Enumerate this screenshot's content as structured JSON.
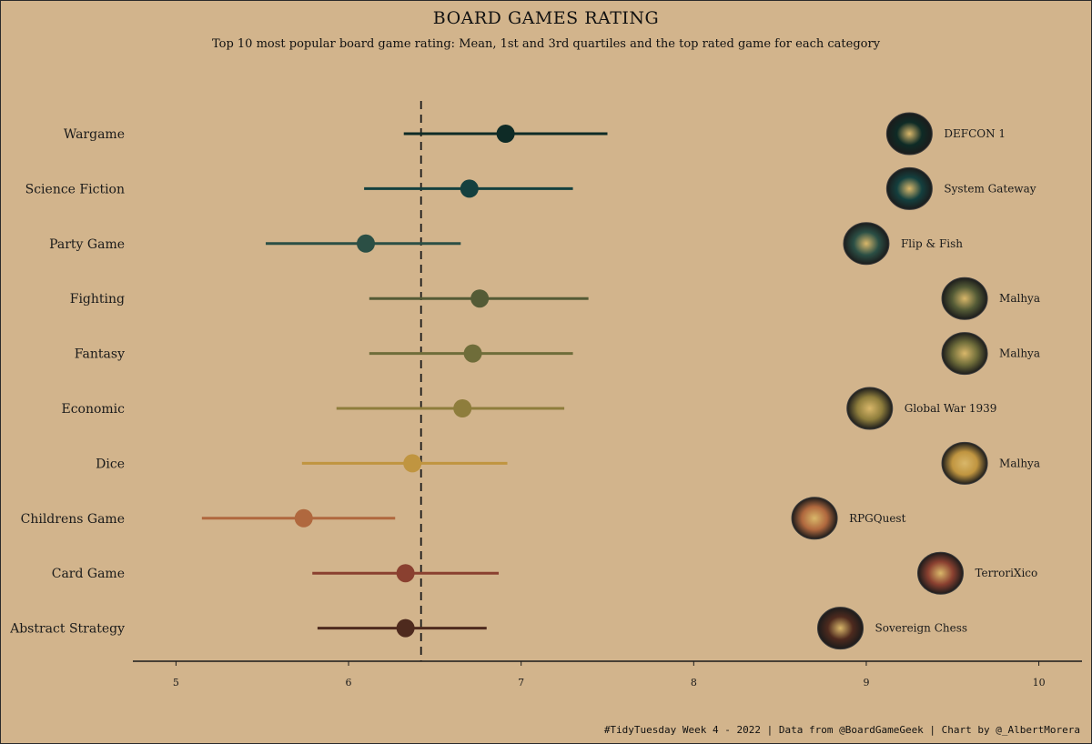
{
  "title": "BOARD GAMES RATING",
  "subtitle": "Top 10 most popular board game rating: Mean, 1st and 3rd quartiles and the top rated game for each category",
  "caption": "#TidyTuesday Week 4 - 2022 | Data from @BoardGameGeek | Chart by @_AlbertMorera",
  "chart_data": {
    "type": "dot-range",
    "xlim": [
      4.75,
      10.25
    ],
    "x_ticks": [
      5,
      6,
      7,
      8,
      9,
      10
    ],
    "reference_line": 6.42,
    "categories": [
      {
        "name": "Wargame",
        "q1": 6.32,
        "mean": 6.91,
        "q3": 7.5,
        "color": "#0e2b26",
        "top_game": "DEFCON 1",
        "top_game_rating": 9.25
      },
      {
        "name": "Science Fiction",
        "q1": 6.09,
        "mean": 6.7,
        "q3": 7.3,
        "color": "#14403f",
        "top_game": "System Gateway",
        "top_game_rating": 9.25
      },
      {
        "name": "Party Game",
        "q1": 5.52,
        "mean": 6.1,
        "q3": 6.65,
        "color": "#2b4f45",
        "top_game": "Flip & Fish",
        "top_game_rating": 9.0
      },
      {
        "name": "Fighting",
        "q1": 6.12,
        "mean": 6.76,
        "q3": 7.39,
        "color": "#545b36",
        "top_game": "Malhya",
        "top_game_rating": 9.57
      },
      {
        "name": "Fantasy",
        "q1": 6.12,
        "mean": 6.72,
        "q3": 7.3,
        "color": "#6f6d3a",
        "top_game": "Malhya",
        "top_game_rating": 9.57
      },
      {
        "name": "Economic",
        "q1": 5.93,
        "mean": 6.66,
        "q3": 7.25,
        "color": "#8e7d3c",
        "top_game": "Global War 1939",
        "top_game_rating": 9.02
      },
      {
        "name": "Dice",
        "q1": 5.73,
        "mean": 6.37,
        "q3": 6.92,
        "color": "#c09540",
        "top_game": "Malhya",
        "top_game_rating": 9.57
      },
      {
        "name": "Childrens Game",
        "q1": 5.15,
        "mean": 5.74,
        "q3": 6.27,
        "color": "#b0683e",
        "top_game": "RPGQuest",
        "top_game_rating": 8.7
      },
      {
        "name": "Card Game",
        "q1": 5.79,
        "mean": 6.33,
        "q3": 6.87,
        "color": "#8a4030",
        "top_game": "TerroriXico",
        "top_game_rating": 9.43
      },
      {
        "name": "Abstract Strategy",
        "q1": 5.82,
        "mean": 6.33,
        "q3": 6.8,
        "color": "#4e2a1e",
        "top_game": "Sovereign Chess",
        "top_game_rating": 8.85
      }
    ]
  }
}
